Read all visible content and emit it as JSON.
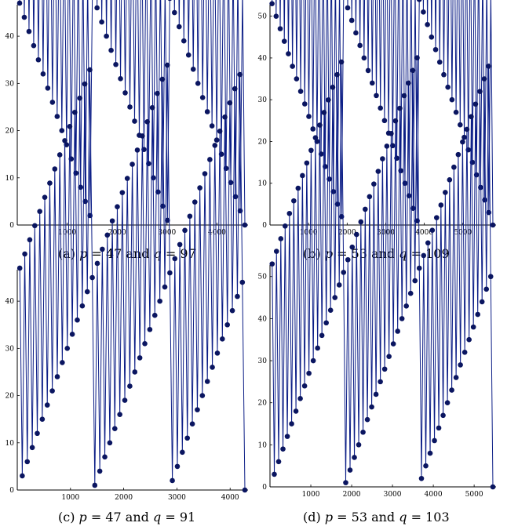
{
  "colors": {
    "line": "#0b1d86",
    "marker": "#0a1560",
    "axis": "#000000"
  },
  "chart_data": [
    {
      "type": "line",
      "panel_label": "(a)",
      "p": 47,
      "q": 97,
      "caption": {
        "prefix": "(a) ",
        "var1": "p",
        "eq1": " = 47 and ",
        "var2": "q",
        "eq2": " = 97"
      },
      "title": "",
      "xlabel": "",
      "ylabel": "",
      "xlim": [
        0,
        4559
      ],
      "ylim": [
        0,
        46
      ],
      "xticks": [
        1000,
        2000,
        3000,
        4000
      ],
      "yticks": [
        0,
        10,
        20,
        30,
        40
      ],
      "grid": false,
      "markers": "filled-circle",
      "series": [
        {
          "x_start": 47,
          "x_step": 47,
          "count": 97,
          "period": 47
        }
      ]
    },
    {
      "type": "line",
      "panel_label": "(b)",
      "p": 53,
      "q": 109,
      "caption": {
        "prefix": "(b) ",
        "var1": "p",
        "eq1": " = 53 and ",
        "var2": "q",
        "eq2": " = 109"
      },
      "title": "",
      "xlabel": "",
      "ylabel": "",
      "xlim": [
        0,
        5777
      ],
      "ylim": [
        0,
        52
      ],
      "xticks": [
        1000,
        2000,
        3000,
        4000,
        5000
      ],
      "yticks": [
        0,
        10,
        20,
        30,
        40,
        50
      ],
      "grid": false,
      "markers": "filled-circle",
      "series": [
        {
          "x_start": 53,
          "x_step": 53,
          "count": 109,
          "period": 53
        }
      ]
    },
    {
      "type": "line",
      "panel_label": "(c)",
      "p": 47,
      "q": 91,
      "caption": {
        "prefix": "(c) ",
        "var1": "p",
        "eq1": " = 47 and ",
        "var2": "q",
        "eq2": " = 91"
      },
      "title": "",
      "xlabel": "",
      "ylabel": "",
      "xlim": [
        0,
        4277
      ],
      "ylim": [
        0,
        46
      ],
      "xticks": [
        1000,
        2000,
        3000,
        4000
      ],
      "yticks": [
        0,
        10,
        20,
        30,
        40
      ],
      "grid": false,
      "markers": "filled-circle",
      "series": [
        {
          "x_start": 47,
          "x_step": 47,
          "count": 91,
          "period": 47
        }
      ]
    },
    {
      "type": "line",
      "panel_label": "(d)",
      "p": 53,
      "q": 103,
      "caption": {
        "prefix": "(d) ",
        "var1": "p",
        "eq1": " = 53 and ",
        "var2": "q",
        "eq2": " = 103"
      },
      "title": "",
      "xlabel": "",
      "ylabel": "",
      "xlim": [
        0,
        5459
      ],
      "ylim": [
        0,
        52
      ],
      "xticks": [
        1000,
        2000,
        3000,
        4000,
        5000
      ],
      "yticks": [
        0,
        10,
        20,
        30,
        40,
        50
      ],
      "grid": false,
      "markers": "filled-circle",
      "series": [
        {
          "x_start": 53,
          "x_step": 53,
          "count": 103,
          "period": 53
        }
      ]
    }
  ]
}
